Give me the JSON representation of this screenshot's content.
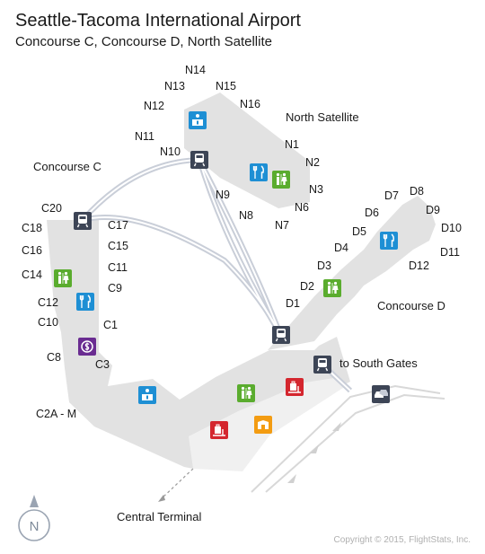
{
  "header": {
    "title": "Seattle-Tacoma International Airport",
    "subtitle": "Concourse C,  Concourse D,  North Satellite"
  },
  "areas": {
    "north_satellite": "North Satellite",
    "concourse_c": "Concourse C",
    "concourse_d": "Concourse D",
    "to_south_gates": "to South Gates",
    "central_terminal": "Central Terminal",
    "c2a_m": "C2A - M"
  },
  "gates": {
    "north": [
      "N1",
      "N2",
      "N3",
      "N6",
      "N7",
      "N8",
      "N9",
      "N10",
      "N11",
      "N12",
      "N13",
      "N14",
      "N15",
      "N16"
    ],
    "c": [
      "C1",
      "C3",
      "C8",
      "C9",
      "C10",
      "C11",
      "C12",
      "C14",
      "C15",
      "C16",
      "C17",
      "C18",
      "C20"
    ],
    "d": [
      "D1",
      "D2",
      "D3",
      "D4",
      "D5",
      "D6",
      "D7",
      "D8",
      "D9",
      "D10",
      "D11",
      "D12"
    ]
  },
  "compass": {
    "letter": "N"
  },
  "footer": {
    "copyright": "Copyright © 2015, FlightStats, Inc."
  },
  "colors": {
    "floor": "#e2e2e2",
    "floor_light": "#efefef",
    "train": "#3d4556",
    "restroom": "#5aac2e",
    "food": "#1e8fd4",
    "info": "#1e8fd4",
    "exchange": "#6a2c91",
    "baggage": "#d4262e",
    "shop": "#f39c12"
  },
  "icons": {
    "train": "train-icon",
    "restroom": "restroom-icon",
    "food": "food-icon",
    "info": "info-desk-icon",
    "exchange": "currency-exchange-icon",
    "baggage": "baggage-icon",
    "shop": "shop-icon",
    "car": "car-icon"
  }
}
